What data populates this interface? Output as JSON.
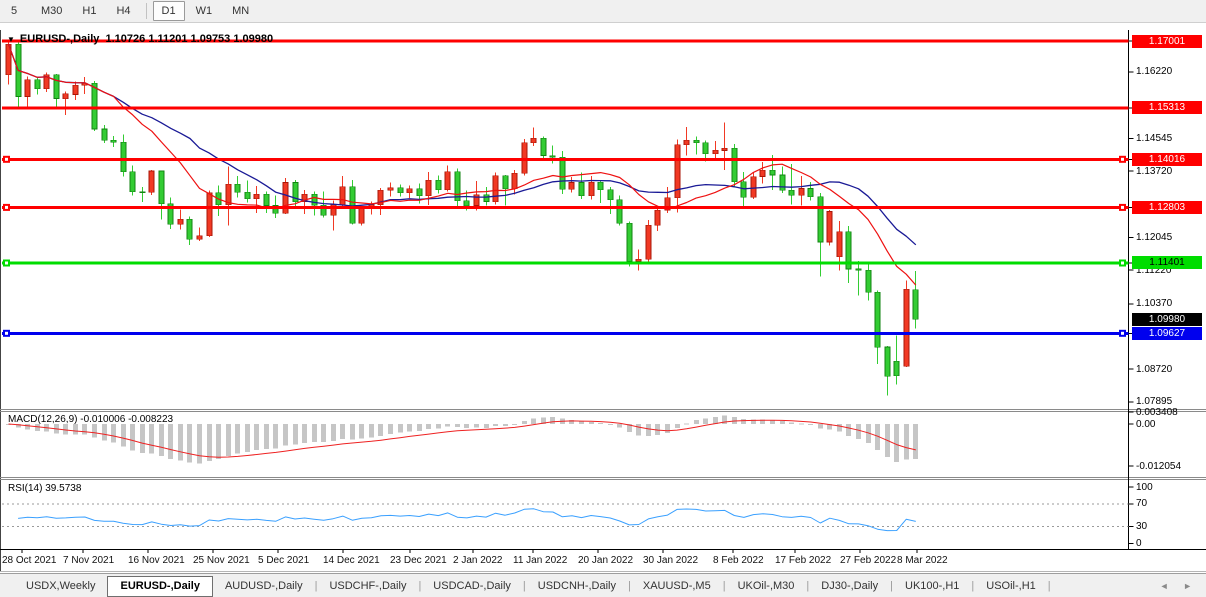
{
  "window": {
    "toolbar": {
      "periods": [
        "5",
        "M30",
        "H1",
        "H4",
        "D1",
        "W1",
        "MN"
      ],
      "active_period": "D1"
    }
  },
  "header": {
    "dropdown_icon": "▼",
    "symbol_text": "EURUSD-,Daily",
    "ohlc_text": "1.10726 1.11201 1.09753 1.09980"
  },
  "price_axis": {
    "plain_ticks": [
      "1.16220",
      "1.14545",
      "1.13720",
      "1.12045",
      "1.11220",
      "1.10370",
      "1.08720",
      "1.07895"
    ],
    "current_badge": {
      "text": "1.09980",
      "bg": "#000000",
      "fg": "#ffffff"
    }
  },
  "chart_data": [
    {
      "type": "candlestick",
      "symbol": "EURUSD-",
      "timeframe": "Daily",
      "up_color": "#f13924",
      "down_color": "#33cc33",
      "x_tick_labels": [
        "28 Oct 2021",
        "7 Nov 2021",
        "16 Nov 2021",
        "25 Nov 2021",
        "5 Dec 2021",
        "14 Dec 2021",
        "23 Dec 2021",
        "2 Jan 2022",
        "11 Jan 2022",
        "20 Jan 2022",
        "30 Jan 2022",
        "8 Feb 2022",
        "17 Feb 2022",
        "27 Feb 2022",
        "8 Mar 2022"
      ],
      "y_range": [
        1.078,
        1.172
      ],
      "moving_averages": [
        {
          "period": 12,
          "method": "sma",
          "color": "#ee1111"
        },
        {
          "period": 20,
          "method": "sma",
          "color": "#1a1a96"
        }
      ],
      "levels": [
        {
          "label": "1.17001",
          "value": 1.17001,
          "color": "#ff0000",
          "text_color": "#ffffff",
          "handles": false
        },
        {
          "label": "1.15313",
          "value": 1.15313,
          "color": "#ff0000",
          "text_color": "#ffffff",
          "handles": false
        },
        {
          "label": "1.14016",
          "value": 1.14016,
          "color": "#ff0000",
          "text_color": "#ffffff",
          "handles": true
        },
        {
          "label": "1.12803",
          "value": 1.12803,
          "color": "#ff0000",
          "text_color": "#ffffff",
          "handles": true
        },
        {
          "label": "1.11401",
          "value": 1.11401,
          "color": "#00dd00",
          "text_color": "#000000",
          "handles": true
        },
        {
          "label": "1.09627",
          "value": 1.09627,
          "color": "#0000ee",
          "text_color": "#ffffff",
          "handles": true
        }
      ],
      "ohlc": [
        [
          1.1615,
          1.17,
          1.159,
          1.1692
        ],
        [
          1.1692,
          1.1698,
          1.1535,
          1.156
        ],
        [
          1.156,
          1.161,
          1.1535,
          1.1602
        ],
        [
          1.1602,
          1.1608,
          1.1565,
          1.158
        ],
        [
          1.158,
          1.162,
          1.1572,
          1.1615
        ],
        [
          1.1615,
          1.1617,
          1.1528,
          1.1555
        ],
        [
          1.1555,
          1.1573,
          1.1514,
          1.1567
        ],
        [
          1.1565,
          1.1598,
          1.1551,
          1.1588
        ],
        [
          1.1588,
          1.1609,
          1.1567,
          1.1593
        ],
        [
          1.1593,
          1.1599,
          1.1473,
          1.1478
        ],
        [
          1.1478,
          1.1488,
          1.1443,
          1.145
        ],
        [
          1.145,
          1.1461,
          1.1433,
          1.1445
        ],
        [
          1.1445,
          1.1464,
          1.1358,
          1.137
        ],
        [
          1.137,
          1.1386,
          1.131,
          1.132
        ],
        [
          1.132,
          1.1332,
          1.1294,
          1.1318
        ],
        [
          1.1318,
          1.1374,
          1.1312,
          1.1372
        ],
        [
          1.1372,
          1.1373,
          1.125,
          1.1289
        ],
        [
          1.1289,
          1.1305,
          1.1226,
          1.1238
        ],
        [
          1.1238,
          1.1275,
          1.1225,
          1.125
        ],
        [
          1.125,
          1.1257,
          1.1186,
          1.12
        ],
        [
          1.12,
          1.123,
          1.1196,
          1.1209
        ],
        [
          1.1209,
          1.1323,
          1.1205,
          1.1317
        ],
        [
          1.1317,
          1.1336,
          1.1258,
          1.1287
        ],
        [
          1.1287,
          1.1383,
          1.1235,
          1.1339
        ],
        [
          1.1339,
          1.136,
          1.1305,
          1.1318
        ],
        [
          1.1318,
          1.1348,
          1.1293,
          1.1302
        ],
        [
          1.1302,
          1.1334,
          1.1266,
          1.1313
        ],
        [
          1.1313,
          1.132,
          1.1266,
          1.1285
        ],
        [
          1.1285,
          1.131,
          1.1253,
          1.1265
        ],
        [
          1.1265,
          1.1354,
          1.1263,
          1.1343
        ],
        [
          1.1343,
          1.1349,
          1.128,
          1.1294
        ],
        [
          1.1294,
          1.1324,
          1.1263,
          1.1313
        ],
        [
          1.1313,
          1.132,
          1.126,
          1.1286
        ],
        [
          1.1286,
          1.132,
          1.1255,
          1.126
        ],
        [
          1.126,
          1.1298,
          1.1222,
          1.1287
        ],
        [
          1.1287,
          1.136,
          1.128,
          1.1332
        ],
        [
          1.1332,
          1.1349,
          1.1237,
          1.124
        ],
        [
          1.124,
          1.1282,
          1.1234,
          1.1278
        ],
        [
          1.1278,
          1.1295,
          1.1262,
          1.1287
        ],
        [
          1.1287,
          1.1329,
          1.1261,
          1.1324
        ],
        [
          1.1324,
          1.1343,
          1.1308,
          1.133
        ],
        [
          1.133,
          1.1338,
          1.1308,
          1.1317
        ],
        [
          1.1317,
          1.1336,
          1.1304,
          1.1327
        ],
        [
          1.1327,
          1.134,
          1.129,
          1.131
        ],
        [
          1.131,
          1.1369,
          1.1286,
          1.1349
        ],
        [
          1.1349,
          1.1361,
          1.1315,
          1.1325
        ],
        [
          1.1325,
          1.1386,
          1.1321,
          1.137
        ],
        [
          1.137,
          1.1379,
          1.1279,
          1.1297
        ],
        [
          1.1297,
          1.1323,
          1.1272,
          1.1285
        ],
        [
          1.1285,
          1.1347,
          1.1272,
          1.1312
        ],
        [
          1.1312,
          1.1332,
          1.1285,
          1.1295
        ],
        [
          1.1295,
          1.1368,
          1.1288,
          1.136
        ],
        [
          1.136,
          1.1362,
          1.1285,
          1.1327
        ],
        [
          1.1327,
          1.1375,
          1.1313,
          1.1366
        ],
        [
          1.1366,
          1.1453,
          1.1361,
          1.1443
        ],
        [
          1.1443,
          1.1482,
          1.1435,
          1.1455
        ],
        [
          1.1455,
          1.1459,
          1.1398,
          1.1411
        ],
        [
          1.1411,
          1.1436,
          1.1391,
          1.1407
        ],
        [
          1.1407,
          1.1423,
          1.1314,
          1.1326
        ],
        [
          1.1326,
          1.1357,
          1.1318,
          1.1343
        ],
        [
          1.1343,
          1.1368,
          1.1301,
          1.131
        ],
        [
          1.131,
          1.136,
          1.13,
          1.1344
        ],
        [
          1.1344,
          1.135,
          1.1291,
          1.1325
        ],
        [
          1.1325,
          1.1332,
          1.1264,
          1.13
        ],
        [
          1.13,
          1.131,
          1.1235,
          1.124
        ],
        [
          1.124,
          1.1245,
          1.1131,
          1.1144
        ],
        [
          1.1144,
          1.1174,
          1.1121,
          1.1149
        ],
        [
          1.1149,
          1.1248,
          1.1141,
          1.1235
        ],
        [
          1.1235,
          1.1279,
          1.1221,
          1.1273
        ],
        [
          1.1273,
          1.1332,
          1.1266,
          1.1305
        ],
        [
          1.1305,
          1.1451,
          1.1267,
          1.1438
        ],
        [
          1.1438,
          1.1483,
          1.1411,
          1.145
        ],
        [
          1.145,
          1.1459,
          1.1414,
          1.1443
        ],
        [
          1.1443,
          1.1449,
          1.1396,
          1.1416
        ],
        [
          1.1416,
          1.1448,
          1.1405,
          1.1424
        ],
        [
          1.1424,
          1.1495,
          1.1375,
          1.143
        ],
        [
          1.143,
          1.144,
          1.133,
          1.1345
        ],
        [
          1.1345,
          1.1369,
          1.128,
          1.1306
        ],
        [
          1.1306,
          1.1368,
          1.1301,
          1.1358
        ],
        [
          1.1358,
          1.1395,
          1.134,
          1.1374
        ],
        [
          1.1374,
          1.1412,
          1.1324,
          1.1362
        ],
        [
          1.1362,
          1.1384,
          1.1316,
          1.1324
        ],
        [
          1.1324,
          1.139,
          1.1287,
          1.1311
        ],
        [
          1.1311,
          1.1359,
          1.1285,
          1.1328
        ],
        [
          1.1328,
          1.1344,
          1.1298,
          1.1307
        ],
        [
          1.1307,
          1.1316,
          1.1106,
          1.1193
        ],
        [
          1.1193,
          1.1274,
          1.1184,
          1.127
        ],
        [
          1.1156,
          1.1246,
          1.1121,
          1.1219
        ],
        [
          1.1219,
          1.1233,
          1.109,
          1.1125
        ],
        [
          1.1125,
          1.1145,
          1.1058,
          1.1122
        ],
        [
          1.1122,
          1.1142,
          1.1045,
          1.1066
        ],
        [
          1.1066,
          1.107,
          1.0885,
          1.0927
        ],
        [
          1.0928,
          1.0931,
          1.0806,
          1.0854
        ],
        [
          1.0892,
          1.0957,
          1.0834,
          1.0856
        ],
        [
          1.088,
          1.1096,
          1.0878,
          1.1074
        ],
        [
          1.10726,
          1.11201,
          1.09753,
          1.0998
        ]
      ]
    },
    {
      "type": "bar",
      "name": "MACD",
      "params": [
        12,
        26,
        9
      ],
      "label": "MACD(12,26,9) -0.010006 -0.008223",
      "last_values": [
        -0.010006,
        -0.008223
      ],
      "axis_labels": [
        "0.003408",
        "0.00",
        "-0.012054"
      ],
      "y_range": [
        -0.012054,
        0.003408
      ],
      "histogram_color": "#c6c6c6",
      "signal_color": "#ee2222"
    },
    {
      "type": "line",
      "name": "RSI",
      "params": [
        14
      ],
      "label": "RSI(14) 39.5738",
      "last_value": 39.5738,
      "axis_labels": [
        "100",
        "70",
        "30",
        "0"
      ],
      "levels": [
        70,
        30
      ],
      "color": "#3aa0ff",
      "y_range": [
        0,
        100
      ]
    }
  ],
  "tabs": {
    "items": [
      "USDX,Weekly",
      "EURUSD-,Daily",
      "AUDUSD-,Daily",
      "USDCHF-,Daily",
      "USDCAD-,Daily",
      "USDCNH-,Daily",
      "XAUUSD-,M5",
      "UKOil-,M30",
      "DJ30-,Daily",
      "UK100-,H1",
      "USOil-,H1"
    ],
    "active_index": 1,
    "scroll_left_icon": "◄",
    "scroll_right_icon": "►"
  }
}
